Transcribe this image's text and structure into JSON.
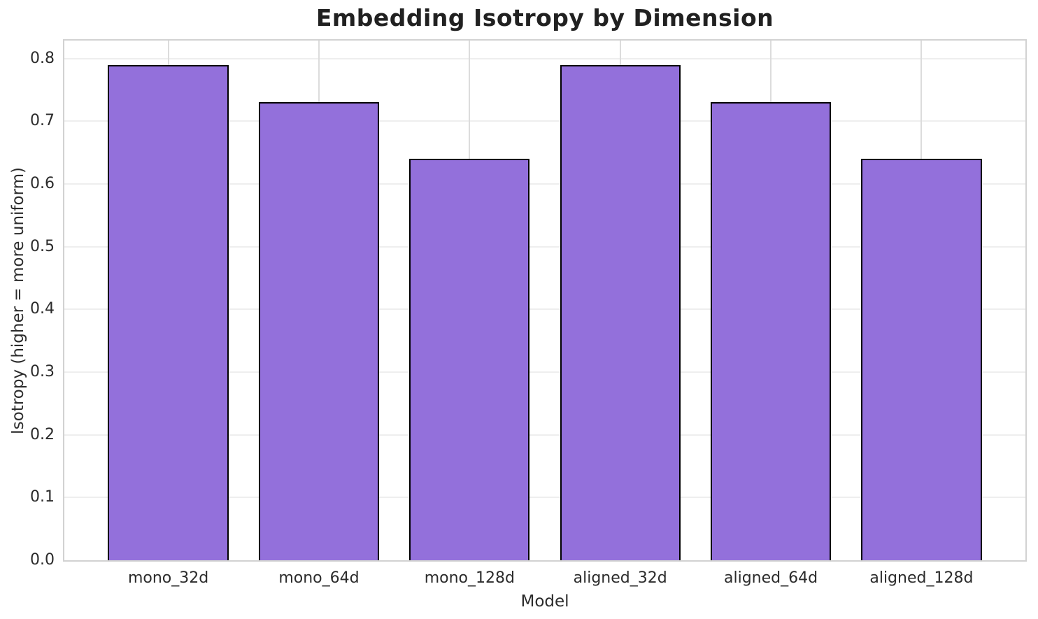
{
  "chart_data": {
    "type": "bar",
    "title": "Embedding Isotropy by Dimension",
    "xlabel": "Model",
    "ylabel": "Isotropy (higher = more uniform)",
    "categories": [
      "mono_32d",
      "mono_64d",
      "mono_128d",
      "aligned_32d",
      "aligned_64d",
      "aligned_128d"
    ],
    "values": [
      0.79,
      0.73,
      0.64,
      0.79,
      0.73,
      0.64
    ],
    "ylim": [
      0,
      0.8285
    ],
    "yticks": [
      0.0,
      0.1,
      0.2,
      0.3,
      0.4,
      0.5,
      0.6,
      0.7,
      0.8
    ],
    "ytick_labels": [
      "0.0",
      "0.1",
      "0.2",
      "0.3",
      "0.4",
      "0.5",
      "0.6",
      "0.7",
      "0.8"
    ],
    "grid": true,
    "legend": null,
    "bar_width_frac": 0.8,
    "category_margin": 0.4,
    "axis_margin_ratio": 0.05,
    "colors": {
      "bar_fill": "#9370DB",
      "bar_edge": "#000000",
      "h_gridline": "#eeeeee",
      "v_gridline": "#dcdcdc",
      "spine": "#d2d2d2",
      "text": "#2b2b2b",
      "title_text": "#212121",
      "background": "#ffffff"
    }
  }
}
